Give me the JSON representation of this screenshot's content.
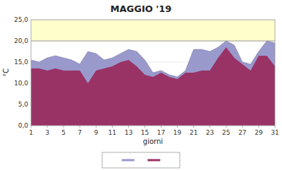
{
  "chart_data": {
    "type": "area",
    "title": "MAGGIO '19",
    "xlabel": "giorni",
    "ylabel": "°C",
    "x": [
      1,
      2,
      3,
      4,
      5,
      6,
      7,
      8,
      9,
      10,
      11,
      12,
      13,
      14,
      15,
      16,
      17,
      18,
      19,
      20,
      21,
      22,
      23,
      24,
      25,
      26,
      27,
      28,
      29,
      30,
      31
    ],
    "series": [
      {
        "color": "#9999cc",
        "values": [
          15.5,
          15.0,
          16.0,
          16.5,
          16.0,
          15.5,
          14.5,
          17.5,
          17.0,
          15.5,
          16.0,
          17.0,
          18.0,
          17.5,
          15.5,
          12.5,
          13.0,
          12.0,
          11.5,
          13.0,
          18.0,
          18.0,
          17.5,
          18.5,
          20.0,
          19.0,
          15.0,
          14.5,
          17.5,
          20.0,
          19.5
        ]
      },
      {
        "color": "#993366",
        "values": [
          13.5,
          13.5,
          13.0,
          13.5,
          13.0,
          13.0,
          13.0,
          10.0,
          13.0,
          13.5,
          14.0,
          15.0,
          15.5,
          14.0,
          12.0,
          11.5,
          12.5,
          11.5,
          11.0,
          12.5,
          12.5,
          13.0,
          13.0,
          16.0,
          18.5,
          16.0,
          14.5,
          13.0,
          16.5,
          16.5,
          14.0
        ]
      }
    ],
    "xlim": [
      1,
      31
    ],
    "xticks": [
      1,
      3,
      5,
      7,
      9,
      11,
      13,
      15,
      17,
      19,
      21,
      23,
      25,
      27,
      29,
      31
    ],
    "ylim": [
      0,
      25
    ],
    "yticks": [
      {
        "value": 0,
        "label": "0,0"
      },
      {
        "value": 5,
        "label": "5,0"
      },
      {
        "value": 10,
        "label": "10,0"
      },
      {
        "value": 15,
        "label": "15,0"
      },
      {
        "value": 20,
        "label": "20,0"
      },
      {
        "value": 25,
        "label": "25,0"
      }
    ],
    "ref_line": 20,
    "ref_color": "#ffffcc",
    "grid": true,
    "legend": "bottom"
  }
}
